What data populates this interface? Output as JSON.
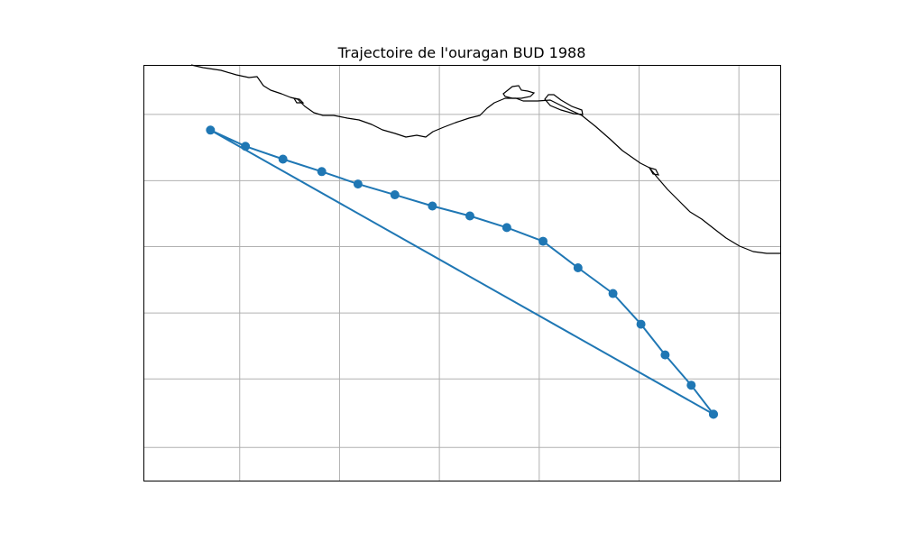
{
  "chart_data": {
    "type": "map",
    "title": "Trajectoire de l'ouragan BUD 1988",
    "grid": true,
    "coastline": true,
    "xlim": [
      0,
      10
    ],
    "ylim": [
      0,
      10
    ],
    "vertical_gridlines": [
      1.5,
      3.07,
      4.64,
      6.21,
      7.78,
      9.35
    ],
    "horizontal_gridlines": [
      8.83,
      7.23,
      5.64,
      4.04,
      2.45,
      0.8
    ],
    "colors": {
      "track": "#1f77b4",
      "coastline": "#000000",
      "grid": "#b0b0b0"
    },
    "series": [
      {
        "x": [
          8.95,
          8.6,
          8.19,
          7.81,
          7.37,
          6.82,
          6.27,
          5.7,
          5.12,
          4.53,
          3.94,
          3.36,
          2.79,
          2.18,
          1.59,
          1.04,
          8.95
        ],
        "y": [
          1.6,
          2.3,
          3.03,
          3.77,
          4.51,
          5.13,
          5.77,
          6.1,
          6.38,
          6.62,
          6.89,
          7.15,
          7.45,
          7.75,
          8.06,
          8.45,
          1.6
        ]
      }
    ]
  }
}
